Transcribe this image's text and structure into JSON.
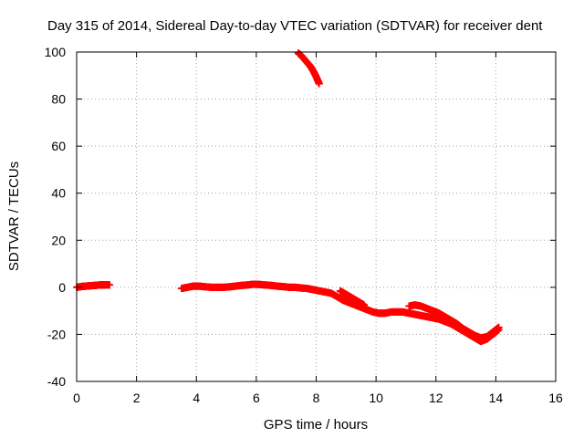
{
  "chart_data": {
    "type": "scatter",
    "title": "Day 315 of 2014, Sidereal Day-to-day VTEC variation (SDTVAR) for receiver dent",
    "xlabel": "GPS time / hours",
    "ylabel": "SDTVAR / TECUs",
    "xlim": [
      0,
      16
    ],
    "ylim": [
      -40,
      100
    ],
    "grid": true,
    "x_ticks": [
      0,
      2,
      4,
      6,
      8,
      10,
      12,
      14,
      16
    ],
    "y_ticks": [
      -40,
      -20,
      0,
      20,
      40,
      60,
      80,
      100
    ],
    "marker": "+",
    "series_color": "#ff0000",
    "series": [
      {
        "name": "segment-1",
        "x": [
          0.0,
          0.1,
          0.2,
          0.3,
          0.4,
          0.5,
          0.6,
          0.7,
          0.8,
          0.9,
          1.0,
          1.1
        ],
        "y": [
          0.0,
          0.2,
          0.4,
          0.5,
          0.6,
          0.7,
          0.8,
          0.9,
          1.0,
          1.0,
          1.1,
          1.0
        ]
      },
      {
        "name": "segment-2",
        "x": [
          7.4,
          7.5,
          7.6,
          7.7,
          7.8,
          7.9,
          8.0,
          8.1
        ],
        "y": [
          99.5,
          98.5,
          97.0,
          95.5,
          94.0,
          92.0,
          89.5,
          86.5
        ]
      },
      {
        "name": "segment-3",
        "x": [
          3.5,
          3.7,
          3.9,
          4.1,
          4.3,
          4.5,
          4.7,
          4.9,
          5.1,
          5.3,
          5.5,
          5.7,
          5.9,
          6.1,
          6.3,
          6.5,
          6.7,
          6.9,
          7.1,
          7.3,
          7.5,
          7.7,
          7.9,
          8.1,
          8.3,
          8.5,
          8.7,
          8.9,
          9.1,
          9.3,
          9.5,
          9.7,
          9.9,
          10.1,
          10.3,
          10.5,
          10.7,
          10.9,
          11.1,
          11.3,
          11.5,
          11.7,
          11.9,
          12.1,
          12.3,
          12.5,
          12.7,
          12.9,
          13.1,
          13.3,
          13.5,
          13.7,
          13.9,
          14.1
        ],
        "y": [
          -0.5,
          0.0,
          0.5,
          0.5,
          0.2,
          0.0,
          0.0,
          0.0,
          0.2,
          0.5,
          0.8,
          1.0,
          1.3,
          1.2,
          1.0,
          0.8,
          0.5,
          0.3,
          0.0,
          0.0,
          -0.3,
          -0.5,
          -1.0,
          -1.5,
          -2.0,
          -2.5,
          -4.0,
          -5.5,
          -6.5,
          -7.5,
          -8.5,
          -9.5,
          -10.5,
          -11.0,
          -11.0,
          -10.5,
          -10.5,
          -10.5,
          -11.0,
          -11.5,
          -12.0,
          -12.5,
          -13.0,
          -13.5,
          -14.5,
          -15.5,
          -17.0,
          -18.5,
          -20.0,
          -21.5,
          -23.0,
          -22.0,
          -20.0,
          -18.0
        ]
      },
      {
        "name": "segment-4",
        "x": [
          8.8,
          9.0,
          9.2,
          9.4,
          9.6
        ],
        "y": [
          -1.5,
          -3.0,
          -4.5,
          -6.0,
          -7.5
        ]
      },
      {
        "name": "segment-5",
        "x": [
          11.1,
          11.3,
          11.5,
          11.7,
          11.9,
          12.1,
          12.3,
          12.5,
          12.7,
          12.9,
          13.1,
          13.3,
          13.5,
          13.7,
          13.9,
          14.1
        ],
        "y": [
          -8.0,
          -7.5,
          -8.0,
          -9.0,
          -10.0,
          -11.0,
          -12.5,
          -14.0,
          -15.5,
          -17.5,
          -19.0,
          -20.5,
          -21.5,
          -21.0,
          -19.0,
          -17.0
        ]
      }
    ]
  }
}
